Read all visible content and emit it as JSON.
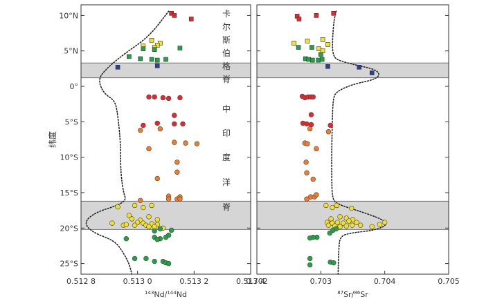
{
  "chart_data": [
    {
      "type": "scatter",
      "title": "",
      "ylabel": "纬度",
      "xlabel_prefix": "143",
      "xlabel_main1": "Nd/",
      "xlabel_prefix2": "144",
      "xlabel_main2": "Nd",
      "xlim": [
        0.5128,
        0.5134
      ],
      "x_ticks": [
        {
          "value": 0.5128,
          "label": "0.512 8"
        },
        {
          "value": 0.513,
          "label": "0.513 0"
        },
        {
          "value": 0.5132,
          "label": "0.513 2"
        },
        {
          "value": 0.5134,
          "label": "0.513 4"
        }
      ],
      "ylim": [
        -26.5,
        11.5
      ],
      "y_ticks": [
        {
          "value": 10,
          "label": "10°N"
        },
        {
          "value": 5,
          "label": "5°N"
        },
        {
          "value": 0,
          "label": "0°"
        },
        {
          "value": -5,
          "label": "5°S"
        },
        {
          "value": -10,
          "label": "10°S"
        },
        {
          "value": -15,
          "label": "15°S"
        },
        {
          "value": -20,
          "label": "20°S"
        },
        {
          "value": -25,
          "label": "25°S"
        }
      ],
      "shaded_bands": [
        [
          1.2,
          3.3
        ],
        [
          -20.2,
          -16.2
        ]
      ],
      "annotations": [
        "卡",
        "尔",
        "斯",
        "伯",
        "格",
        "脊",
        "中",
        "印",
        "度",
        "洋",
        "脊"
      ],
      "envelope": [
        [
          0.51311,
          10.6
        ],
        [
          0.51304,
          7
        ],
        [
          0.51295,
          4.5
        ],
        [
          0.51289,
          2.5
        ],
        [
          0.51286,
          1
        ],
        [
          0.51288,
          -1
        ],
        [
          0.51292,
          -2
        ],
        [
          0.51293,
          -4
        ],
        [
          0.51294,
          -8
        ],
        [
          0.51294,
          -12
        ],
        [
          0.51295,
          -15
        ],
        [
          0.51296,
          -16
        ],
        [
          0.51293,
          -16.8
        ],
        [
          0.51285,
          -17.8
        ],
        [
          0.51281,
          -19.2
        ],
        [
          0.51284,
          -20.6
        ],
        [
          0.51292,
          -21.8
        ],
        [
          0.51295,
          -23.5
        ],
        [
          0.51297,
          -25
        ],
        [
          0.51298,
          -26.5
        ]
      ],
      "series": [
        {
          "color": "#e8262a",
          "marker": "square",
          "points": [
            [
              0.51312,
              10.3
            ],
            [
              0.51313,
              10.0
            ],
            [
              0.51319,
              9.5
            ]
          ]
        },
        {
          "color": "#f2e02a",
          "marker": "square",
          "points": [
            [
              0.51305,
              6.5
            ],
            [
              0.51308,
              6.1
            ],
            [
              0.51307,
              5.8
            ],
            [
              0.51302,
              5.7
            ],
            [
              0.51306,
              5.5
            ]
          ]
        },
        {
          "color": "#25a244",
          "marker": "square",
          "points": [
            [
              0.51302,
              5.3
            ],
            [
              0.51306,
              5.2
            ],
            [
              0.51315,
              5.4
            ],
            [
              0.51297,
              4.2
            ],
            [
              0.51301,
              3.9
            ],
            [
              0.51305,
              3.8
            ],
            [
              0.51307,
              3.7
            ],
            [
              0.5131,
              3.8
            ]
          ]
        },
        {
          "color": "#2a3f96",
          "marker": "square",
          "points": [
            [
              0.51293,
              2.7
            ],
            [
              0.51307,
              2.9
            ]
          ]
        },
        {
          "color": "#e8262a",
          "marker": "circle",
          "points": [
            [
              0.51304,
              -1.5
            ],
            [
              0.51306,
              -1.5
            ],
            [
              0.51309,
              -1.6
            ],
            [
              0.51311,
              -1.7
            ],
            [
              0.51315,
              -1.6
            ],
            [
              0.51313,
              -4.1
            ],
            [
              0.51302,
              -5.5
            ],
            [
              0.51307,
              -5.2
            ],
            [
              0.51313,
              -5.3
            ],
            [
              0.51316,
              -5.3
            ]
          ]
        },
        {
          "color": "#ef7d29",
          "marker": "circle",
          "points": [
            [
              0.51301,
              -6.2
            ],
            [
              0.51308,
              -6.0
            ],
            [
              0.51313,
              -7.9
            ],
            [
              0.51317,
              -8.0
            ],
            [
              0.51321,
              -8.1
            ],
            [
              0.51304,
              -8.8
            ],
            [
              0.51314,
              -10.7
            ],
            [
              0.51314,
              -12.1
            ],
            [
              0.51307,
              -13.0
            ],
            [
              0.51311,
              -15.5
            ],
            [
              0.51315,
              -15.6
            ],
            [
              0.51311,
              -15.9
            ],
            [
              0.51314,
              -15.9
            ],
            [
              0.51315,
              -15.9
            ],
            [
              0.51301,
              -16.1
            ]
          ]
        },
        {
          "color": "#f2e02a",
          "marker": "circle",
          "points": [
            [
              0.51293,
              -17.0
            ],
            [
              0.51299,
              -16.8
            ],
            [
              0.51305,
              -16.8
            ],
            [
              0.51302,
              -17.1
            ],
            [
              0.51297,
              -18.2
            ],
            [
              0.51298,
              -18.7
            ],
            [
              0.51304,
              -18.4
            ],
            [
              0.51301,
              -18.9
            ],
            [
              0.51307,
              -18.8
            ],
            [
              0.513,
              -19.2
            ],
            [
              0.51302,
              -19.3
            ],
            [
              0.51305,
              -19.4
            ],
            [
              0.51299,
              -19.6
            ],
            [
              0.51303,
              -19.6
            ],
            [
              0.51307,
              -19.5
            ],
            [
              0.51304,
              -19.8
            ],
            [
              0.51306,
              -19.8
            ],
            [
              0.51309,
              -20.0
            ],
            [
              0.51291,
              -19.3
            ],
            [
              0.51295,
              -19.6
            ],
            [
              0.51296,
              -19.5
            ]
          ]
        },
        {
          "color": "#25a244",
          "marker": "circle",
          "points": [
            [
              0.51308,
              -20.1
            ],
            [
              0.51306,
              -20.4
            ],
            [
              0.51312,
              -20.3
            ],
            [
              0.51311,
              -21.0
            ],
            [
              0.51306,
              -21.3
            ],
            [
              0.5131,
              -21.3
            ],
            [
              0.51308,
              -21.5
            ],
            [
              0.51296,
              -21.5
            ],
            [
              0.51307,
              -21.6
            ],
            [
              0.51299,
              -24.3
            ],
            [
              0.51303,
              -24.3
            ],
            [
              0.51306,
              -24.7
            ],
            [
              0.51309,
              -24.7
            ],
            [
              0.5131,
              -24.9
            ],
            [
              0.51311,
              -25.0
            ]
          ]
        }
      ]
    },
    {
      "type": "scatter",
      "title": "",
      "xlabel_prefix": "87",
      "xlabel_main1": "Sr/",
      "xlabel_prefix2": "86",
      "xlabel_main2": "Sr",
      "xlim": [
        0.702,
        0.705
      ],
      "x_ticks": [
        {
          "value": 0.702,
          "label": "0.702"
        },
        {
          "value": 0.703,
          "label": "0.703"
        },
        {
          "value": 0.704,
          "label": "0.704"
        },
        {
          "value": 0.705,
          "label": "0.705"
        }
      ],
      "ylim": [
        -26.5,
        11.5
      ],
      "y_ticks": [
        10,
        5,
        0,
        -5,
        -10,
        -15,
        -20,
        -25
      ],
      "shaded_bands": [
        [
          1.2,
          3.3
        ],
        [
          -20.2,
          -16.2
        ]
      ],
      "envelope": [
        [
          0.70324,
          10.6
        ],
        [
          0.7032,
          9
        ],
        [
          0.70318,
          6
        ],
        [
          0.70319,
          4.5
        ],
        [
          0.70325,
          3.7
        ],
        [
          0.70355,
          3
        ],
        [
          0.70385,
          2.4
        ],
        [
          0.70393,
          1.6
        ],
        [
          0.70382,
          0.9
        ],
        [
          0.7035,
          0.3
        ],
        [
          0.70323,
          -0.8
        ],
        [
          0.70319,
          -2
        ],
        [
          0.70318,
          -5
        ],
        [
          0.70317,
          -9
        ],
        [
          0.70317,
          -13
        ],
        [
          0.70318,
          -15.8
        ],
        [
          0.70325,
          -16.6
        ],
        [
          0.7036,
          -17.6
        ],
        [
          0.70395,
          -18.7
        ],
        [
          0.70405,
          -19.5
        ],
        [
          0.70385,
          -20.3
        ],
        [
          0.70345,
          -20.7
        ],
        [
          0.7033,
          -21.2
        ],
        [
          0.70328,
          -23
        ],
        [
          0.70327,
          -26.5
        ]
      ],
      "series": [
        {
          "color": "#e8262a",
          "marker": "square",
          "points": [
            [
              0.70263,
              9.9
            ],
            [
              0.70266,
              9.5
            ],
            [
              0.70293,
              10.0
            ],
            [
              0.7032,
              10.3
            ]
          ]
        },
        {
          "color": "#f2e02a",
          "marker": "square",
          "points": [
            [
              0.70258,
              6.1
            ],
            [
              0.70279,
              6.4
            ],
            [
              0.70303,
              6.6
            ],
            [
              0.70311,
              5.9
            ],
            [
              0.70297,
              5.3
            ],
            [
              0.70303,
              5.0
            ]
          ]
        },
        {
          "color": "#25a244",
          "marker": "square",
          "points": [
            [
              0.70265,
              5.5
            ],
            [
              0.70286,
              5.5
            ],
            [
              0.703,
              4.5
            ],
            [
              0.70276,
              3.9
            ],
            [
              0.70281,
              3.8
            ],
            [
              0.70287,
              3.7
            ],
            [
              0.70296,
              3.7
            ],
            [
              0.70302,
              3.8
            ]
          ]
        },
        {
          "color": "#2a3f96",
          "marker": "square",
          "points": [
            [
              0.70311,
              2.8
            ],
            [
              0.7036,
              2.7
            ],
            [
              0.7038,
              1.9
            ]
          ]
        },
        {
          "color": "#e8262a",
          "marker": "circle",
          "points": [
            [
              0.70271,
              -1.4
            ],
            [
              0.70275,
              -1.6
            ],
            [
              0.7028,
              -1.5
            ],
            [
              0.70284,
              -1.5
            ],
            [
              0.70288,
              -1.5
            ],
            [
              0.70285,
              -4.0
            ],
            [
              0.70272,
              -5.2
            ],
            [
              0.70278,
              -5.3
            ],
            [
              0.70285,
              -5.4
            ],
            [
              0.70315,
              -5.5
            ]
          ]
        },
        {
          "color": "#ef7d29",
          "marker": "circle",
          "points": [
            [
              0.70283,
              -6.0
            ],
            [
              0.70312,
              -6.4
            ],
            [
              0.70275,
              -8.0
            ],
            [
              0.70279,
              -8.1
            ],
            [
              0.70293,
              -8.8
            ],
            [
              0.70277,
              -10.7
            ],
            [
              0.70278,
              -12.2
            ],
            [
              0.70288,
              -13.1
            ],
            [
              0.70284,
              -15.6
            ],
            [
              0.7029,
              -15.6
            ],
            [
              0.70293,
              -15.3
            ],
            [
              0.70278,
              -15.9
            ]
          ]
        },
        {
          "color": "#f2e02a",
          "marker": "circle",
          "points": [
            [
              0.70308,
              -16.8
            ],
            [
              0.70318,
              -17.1
            ],
            [
              0.70325,
              -16.8
            ],
            [
              0.70348,
              -17.2
            ],
            [
              0.70316,
              -18.7
            ],
            [
              0.7033,
              -18.4
            ],
            [
              0.7034,
              -18.6
            ],
            [
              0.7035,
              -18.8
            ],
            [
              0.7031,
              -19.2
            ],
            [
              0.70318,
              -19.3
            ],
            [
              0.70326,
              -19.2
            ],
            [
              0.70335,
              -19.3
            ],
            [
              0.70344,
              -19.0
            ],
            [
              0.70356,
              -19.2
            ],
            [
              0.70362,
              -19.6
            ],
            [
              0.70312,
              -19.6
            ],
            [
              0.70322,
              -19.7
            ],
            [
              0.7033,
              -19.8
            ],
            [
              0.7034,
              -19.7
            ],
            [
              0.70349,
              -19.6
            ],
            [
              0.70392,
              -19.5
            ],
            [
              0.704,
              -19.2
            ],
            [
              0.7038,
              -19.8
            ]
          ]
        },
        {
          "color": "#25a244",
          "marker": "circle",
          "points": [
            [
              0.70319,
              -20.3
            ],
            [
              0.70324,
              -20.1
            ],
            [
              0.70314,
              -20.7
            ],
            [
              0.70294,
              -21.3
            ],
            [
              0.70288,
              -21.3
            ],
            [
              0.70283,
              -21.4
            ],
            [
              0.70283,
              -24.3
            ],
            [
              0.70315,
              -24.8
            ],
            [
              0.7032,
              -24.9
            ],
            [
              0.70283,
              -25.2
            ]
          ]
        }
      ]
    }
  ]
}
